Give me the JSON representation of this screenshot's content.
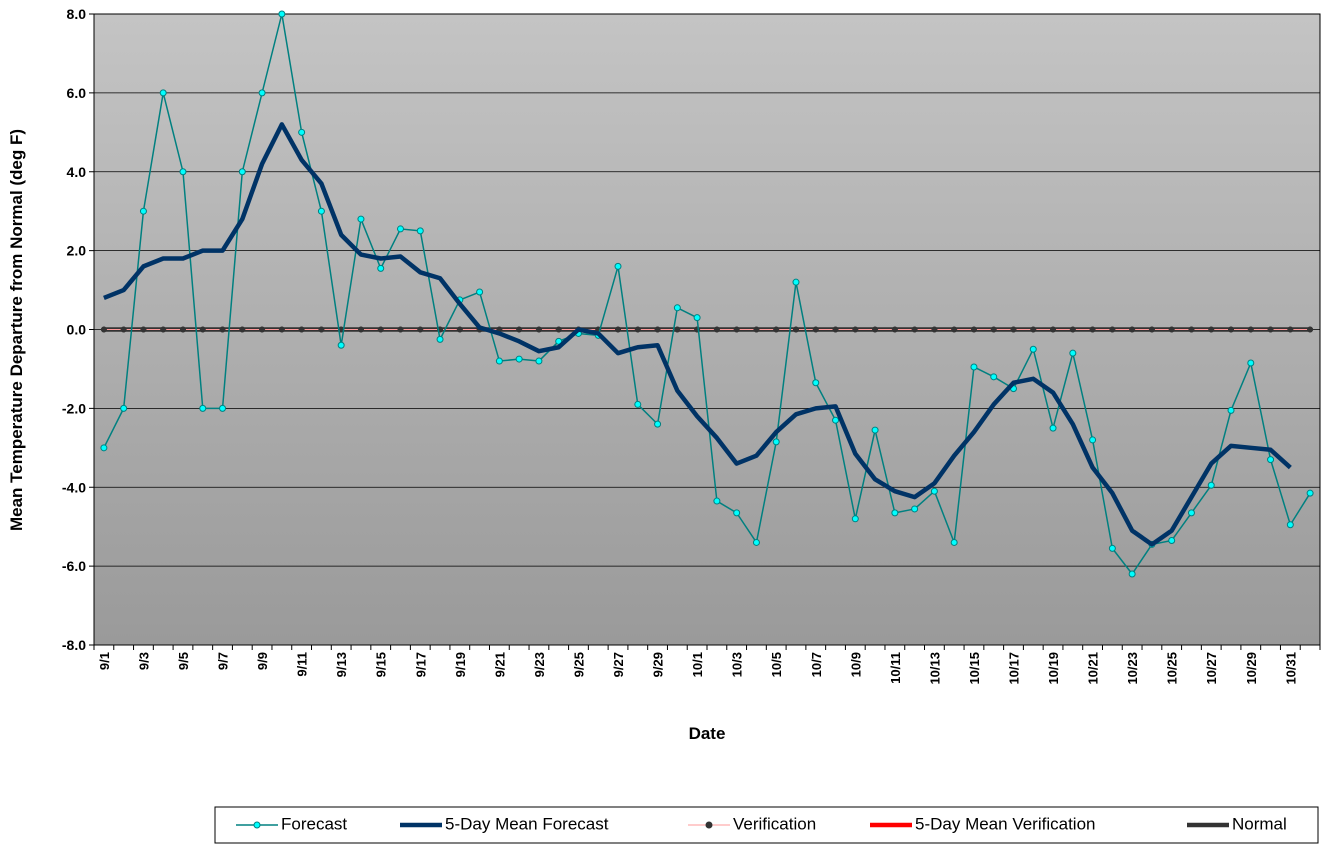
{
  "chart_data": {
    "type": "line",
    "y_axis_label": "Mean Temperature Departure from Normal (deg F)",
    "x_axis_label": "Date",
    "categories": [
      "9/1",
      null,
      "9/3",
      null,
      "9/5",
      null,
      "9/7",
      null,
      "9/9",
      null,
      "9/11",
      null,
      "9/13",
      null,
      "9/15",
      null,
      "9/17",
      null,
      "9/19",
      null,
      "9/21",
      null,
      "9/23",
      null,
      "9/25",
      null,
      "9/27",
      null,
      "9/29",
      null,
      "10/1",
      null,
      "10/3",
      null,
      "10/5",
      null,
      "10/7",
      null,
      "10/9",
      null,
      "10/11",
      null,
      "10/13",
      null,
      "10/15",
      null,
      "10/17",
      null,
      "10/19",
      null,
      "10/21",
      null,
      "10/23",
      null,
      "10/25",
      null,
      "10/27",
      null,
      "10/29",
      null,
      "10/31",
      null
    ],
    "series": [
      {
        "name": "Forecast",
        "color": "#008080",
        "marker_color": "#00ffff",
        "line_width": 1.5,
        "marker": true,
        "values": [
          -3,
          -2,
          3,
          6,
          4,
          -2,
          -2,
          4,
          6,
          8,
          5,
          3,
          -0.4,
          2.8,
          1.55,
          2.55,
          2.5,
          -0.25,
          0.75,
          0.95,
          -0.8,
          -0.75,
          -0.8,
          -0.3,
          -0.1,
          -0.15,
          1.6,
          -1.9,
          -2.4,
          0.55,
          0.3,
          -4.35,
          -4.65,
          -5.4,
          -2.85,
          1.2,
          -1.35,
          -2.3,
          -4.8,
          -2.55,
          -4.65,
          -4.55,
          -4.1,
          -5.4,
          -0.95,
          -1.2,
          -1.5,
          -0.5,
          -2.5,
          -0.6,
          -2.8,
          -5.55,
          -6.2,
          -5.45,
          -5.35,
          -4.65,
          -3.95,
          -2.05,
          -0.85,
          -3.3,
          -4.95,
          -4.15
        ]
      },
      {
        "name": "5-Day Mean Forecast",
        "color": "#003366",
        "line_width": 4.5,
        "marker": false,
        "values": [
          0.8,
          1.0,
          1.6,
          1.8,
          1.8,
          2.0,
          2.0,
          2.8,
          4.2,
          5.2,
          4.3,
          3.7,
          2.4,
          1.9,
          1.8,
          1.85,
          1.45,
          1.3,
          0.65,
          0.05,
          -0.1,
          -0.3,
          -0.55,
          -0.45,
          0.0,
          -0.1,
          -0.6,
          -0.45,
          -0.4,
          -1.55,
          -2.2,
          -2.75,
          -3.4,
          -3.2,
          -2.6,
          -2.15,
          -2.0,
          -1.95,
          -3.15,
          -3.8,
          -4.1,
          -4.25,
          -3.9,
          -3.2,
          -2.6,
          -1.9,
          -1.35,
          -1.25,
          -1.6,
          -2.4,
          -3.5,
          -4.15,
          -5.1,
          -5.45,
          -5.1,
          -4.25,
          -3.4,
          -2.95,
          -3.0,
          -3.05,
          -3.5,
          null
        ]
      },
      {
        "name": "Verification",
        "color": "#ff9999",
        "marker_color": "#333333",
        "line_width": 1,
        "marker": true,
        "values": [
          0,
          0,
          0,
          0,
          0,
          0,
          0,
          0,
          0,
          0,
          0,
          0,
          0,
          0,
          0,
          0,
          0,
          0,
          0,
          0,
          0,
          0,
          0,
          0,
          0,
          0,
          0,
          0,
          0,
          0,
          0,
          0,
          0,
          0,
          0,
          0,
          0,
          0,
          0,
          0,
          0,
          0,
          0,
          0,
          0,
          0,
          0,
          0,
          0,
          0,
          0,
          0,
          0,
          0,
          0,
          0,
          0,
          0,
          0,
          0,
          0,
          0
        ]
      },
      {
        "name": "5-Day Mean Verification",
        "color": "#ff0000",
        "line_width": 4.5,
        "marker": false,
        "values": [
          null,
          null,
          null,
          null,
          null,
          null,
          null,
          null,
          null,
          null,
          null,
          null,
          null,
          null,
          null,
          null,
          null,
          null,
          null,
          null,
          null,
          null,
          null,
          null,
          null,
          null,
          null,
          null,
          null,
          null,
          null,
          null,
          null,
          null,
          null,
          null,
          null,
          null,
          null,
          null,
          null,
          null,
          null,
          null,
          null,
          null,
          null,
          null,
          null,
          null,
          null,
          null,
          null,
          null,
          null,
          null,
          null,
          null,
          null,
          null,
          null,
          null
        ]
      },
      {
        "name": "Normal",
        "color": "#333333",
        "line_width": 4.5,
        "marker": false,
        "values": [
          0,
          0,
          0,
          0,
          0,
          0,
          0,
          0,
          0,
          0,
          0,
          0,
          0,
          0,
          0,
          0,
          0,
          0,
          0,
          0,
          0,
          0,
          0,
          0,
          0,
          0,
          0,
          0,
          0,
          0,
          0,
          0,
          0,
          0,
          0,
          0,
          0,
          0,
          0,
          0,
          0,
          0,
          0,
          0,
          0,
          0,
          0,
          0,
          0,
          0,
          0,
          0,
          0,
          0,
          0,
          0,
          0,
          0,
          0,
          0,
          0,
          0
        ]
      }
    ],
    "ylim": [
      -8,
      8
    ],
    "yticks": [
      {
        "value": -8,
        "label": "-8.0"
      },
      {
        "value": -6,
        "label": "-6.0"
      },
      {
        "value": -4,
        "label": "-4.0"
      },
      {
        "value": -2,
        "label": "-2.0"
      },
      {
        "value": 0,
        "label": "0.0"
      },
      {
        "value": 2,
        "label": "2.0"
      },
      {
        "value": 4,
        "label": "4.0"
      },
      {
        "value": 6,
        "label": "6.0"
      },
      {
        "value": 8,
        "label": "8.0"
      }
    ],
    "grid": true,
    "legend": "bottom"
  }
}
